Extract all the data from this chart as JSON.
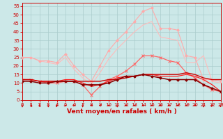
{
  "background_color": "#cce8e8",
  "grid_color": "#aacccc",
  "xlabel": "Vent moyen/en rafales ( km/h )",
  "xlabel_color": "#cc0000",
  "xlabel_fontsize": 6.5,
  "tick_color": "#cc0000",
  "tick_fontsize": 5.0,
  "ylim": [
    0,
    57
  ],
  "xlim": [
    0,
    23
  ],
  "yticks": [
    0,
    5,
    10,
    15,
    20,
    25,
    30,
    35,
    40,
    45,
    50,
    55
  ],
  "xticks": [
    0,
    1,
    2,
    3,
    4,
    5,
    6,
    7,
    8,
    9,
    10,
    11,
    12,
    13,
    14,
    15,
    16,
    17,
    18,
    19,
    20,
    21,
    22,
    23
  ],
  "series": [
    {
      "x": [
        0,
        1,
        2,
        3,
        4,
        5,
        6,
        7,
        8,
        9,
        10,
        11,
        12,
        13,
        14,
        15,
        16,
        17,
        18,
        19,
        20,
        21,
        22,
        23
      ],
      "y": [
        25,
        25,
        23,
        23,
        22,
        27,
        20,
        15,
        11,
        20,
        29,
        35,
        40,
        46,
        52,
        54,
        42,
        42,
        41,
        26,
        25,
        12,
        12,
        11
      ],
      "color": "#ffaaaa",
      "lw": 0.8,
      "marker": "D",
      "ms": 1.8,
      "zorder": 3
    },
    {
      "x": [
        0,
        1,
        2,
        3,
        4,
        5,
        6,
        7,
        8,
        9,
        10,
        11,
        12,
        13,
        14,
        15,
        16,
        17,
        18,
        19,
        20,
        21,
        22,
        23
      ],
      "y": [
        25,
        25,
        23,
        22,
        21,
        25,
        18,
        13,
        9,
        16,
        24,
        30,
        35,
        40,
        44,
        46,
        37,
        36,
        35,
        22,
        22,
        26,
        11,
        10
      ],
      "color": "#ffbbbb",
      "lw": 0.8,
      "marker": null,
      "ms": 0,
      "zorder": 2
    },
    {
      "x": [
        0,
        1,
        2,
        3,
        4,
        5,
        6,
        7,
        8,
        9,
        10,
        11,
        12,
        13,
        14,
        15,
        16,
        17,
        18,
        19,
        20,
        21,
        22,
        23
      ],
      "y": [
        12,
        12,
        11,
        10,
        10,
        11,
        11,
        9,
        3,
        8,
        12,
        14,
        17,
        21,
        26,
        26,
        25,
        23,
        22,
        16,
        13,
        9,
        6,
        5
      ],
      "color": "#ff6666",
      "lw": 0.9,
      "marker": "x",
      "ms": 3.0,
      "zorder": 4
    },
    {
      "x": [
        0,
        1,
        2,
        3,
        4,
        5,
        6,
        7,
        8,
        9,
        10,
        11,
        12,
        13,
        14,
        15,
        16,
        17,
        18,
        19,
        20,
        21,
        22,
        23
      ],
      "y": [
        12,
        12,
        11,
        11,
        11,
        11,
        11,
        11,
        11,
        11,
        12,
        12,
        13,
        14,
        15,
        15,
        15,
        15,
        15,
        16,
        15,
        13,
        12,
        12
      ],
      "color": "#cc0000",
      "lw": 1.0,
      "marker": null,
      "ms": 0,
      "zorder": 5
    },
    {
      "x": [
        0,
        1,
        2,
        3,
        4,
        5,
        6,
        7,
        8,
        9,
        10,
        11,
        12,
        13,
        14,
        15,
        16,
        17,
        18,
        19,
        20,
        21,
        22,
        23
      ],
      "y": [
        11,
        11,
        10,
        10,
        11,
        11,
        11,
        9,
        9,
        9,
        10,
        12,
        14,
        14,
        15,
        14,
        13,
        12,
        12,
        12,
        12,
        9,
        7,
        5
      ],
      "color": "#880000",
      "lw": 1.1,
      "marker": "D",
      "ms": 1.8,
      "zorder": 6
    },
    {
      "x": [
        0,
        1,
        2,
        3,
        4,
        5,
        6,
        7,
        8,
        9,
        10,
        11,
        12,
        13,
        14,
        15,
        16,
        17,
        18,
        19,
        20,
        21,
        22,
        23
      ],
      "y": [
        12,
        12,
        11,
        11,
        11,
        12,
        12,
        10,
        8,
        9,
        11,
        13,
        14,
        14,
        15,
        15,
        14,
        14,
        14,
        15,
        14,
        12,
        9,
        5
      ],
      "color": "#ff2222",
      "lw": 0.9,
      "marker": null,
      "ms": 0,
      "zorder": 4
    }
  ],
  "arrow_directions": [
    180,
    160,
    160,
    170,
    200,
    80,
    90,
    180,
    270,
    270,
    270,
    180,
    260,
    270,
    270,
    260,
    270,
    270,
    260,
    270,
    260,
    180,
    220,
    200
  ]
}
